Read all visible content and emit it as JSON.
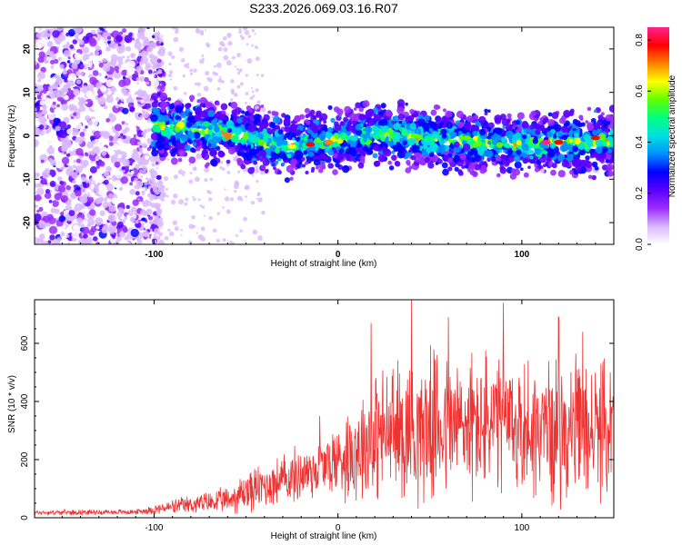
{
  "title": "S233.2026.069.03.16.R07",
  "chart_data": [
    {
      "type": "heatmap",
      "xlabel": "Height of straight line (km)",
      "ylabel": "Frequency (Hz)",
      "xlim": [
        -165,
        150
      ],
      "ylim": [
        -25,
        25
      ],
      "x_ticks": [
        -100,
        0,
        100
      ],
      "y_ticks": [
        -20,
        -10,
        0,
        10,
        20
      ],
      "colorbar": {
        "label": "Normalized spectral amplitude",
        "range": [
          0,
          0.85
        ],
        "ticks": [
          "0.0",
          "0.2",
          "0.4",
          "0.6",
          "0.8"
        ],
        "colors": [
          "#ffffff",
          "#d9b8ff",
          "#9a2bff",
          "#5a00ff",
          "#0000ff",
          "#0090ff",
          "#00e0e0",
          "#00ff80",
          "#60ff00",
          "#ffff00",
          "#ff8000",
          "#ff0000",
          "#ff2090"
        ]
      },
      "signal_track": {
        "description_x_start": -100,
        "x_end": 150,
        "center_freq": [
          [
            -100,
            2.5
          ],
          [
            -50,
            0.0
          ],
          [
            -30,
            -2.5
          ],
          [
            -10,
            -1.5
          ],
          [
            0,
            -1.0
          ],
          [
            20,
            0.5
          ],
          [
            40,
            0.0
          ],
          [
            60,
            -1.0
          ],
          [
            80,
            -1.5
          ],
          [
            100,
            -2.0
          ],
          [
            120,
            -1.5
          ],
          [
            150,
            -1.5
          ]
        ],
        "peak_amplitude": 0.85
      }
    },
    {
      "type": "line",
      "xlabel": "Height of straight line (km)",
      "ylabel": "SNR (10 * v/v)",
      "xlim": [
        -165,
        150
      ],
      "ylim": [
        0,
        750
      ],
      "x_ticks": [
        -100,
        0,
        100
      ],
      "y_ticks": [
        0,
        200,
        400,
        600
      ],
      "color": "#ee3333",
      "envelope": {
        "x": [
          -165,
          -110,
          -100,
          -80,
          -60,
          -50,
          -40,
          -20,
          -10,
          0,
          10,
          20,
          40,
          60,
          80,
          100,
          120,
          140,
          150
        ],
        "mean": [
          18,
          20,
          28,
          45,
          60,
          90,
          110,
          150,
          170,
          200,
          240,
          280,
          310,
          320,
          320,
          310,
          300,
          300,
          300
        ],
        "spread": [
          8,
          8,
          15,
          30,
          40,
          70,
          70,
          90,
          100,
          120,
          170,
          200,
          230,
          230,
          230,
          220,
          220,
          210,
          200
        ]
      },
      "peaks": [
        [
          -10,
          350
        ],
        [
          18,
          670
        ],
        [
          40,
          750
        ],
        [
          60,
          690
        ],
        [
          90,
          740
        ],
        [
          120,
          690
        ],
        [
          133,
          640
        ],
        [
          148,
          500
        ]
      ]
    }
  ]
}
